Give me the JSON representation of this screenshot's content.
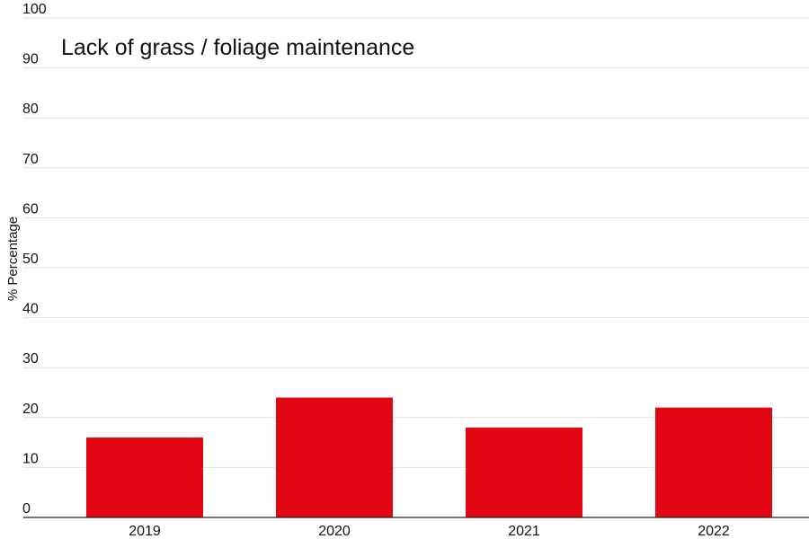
{
  "chart_data": {
    "type": "bar",
    "title": "Lack of grass / foliage maintenance",
    "xlabel": "",
    "ylabel": "% Percentage",
    "categories": [
      "2019",
      "2020",
      "2021",
      "2022"
    ],
    "values": [
      16,
      24,
      18,
      22
    ],
    "ylim": [
      0,
      100
    ],
    "yticks": [
      0,
      10,
      20,
      30,
      40,
      50,
      60,
      70,
      80,
      90,
      100
    ],
    "grid": true,
    "legend": "none",
    "colors": {
      "bar": "#e30613",
      "grid": "#e3e3e3",
      "axis": "#222222",
      "text": "#111111"
    }
  }
}
